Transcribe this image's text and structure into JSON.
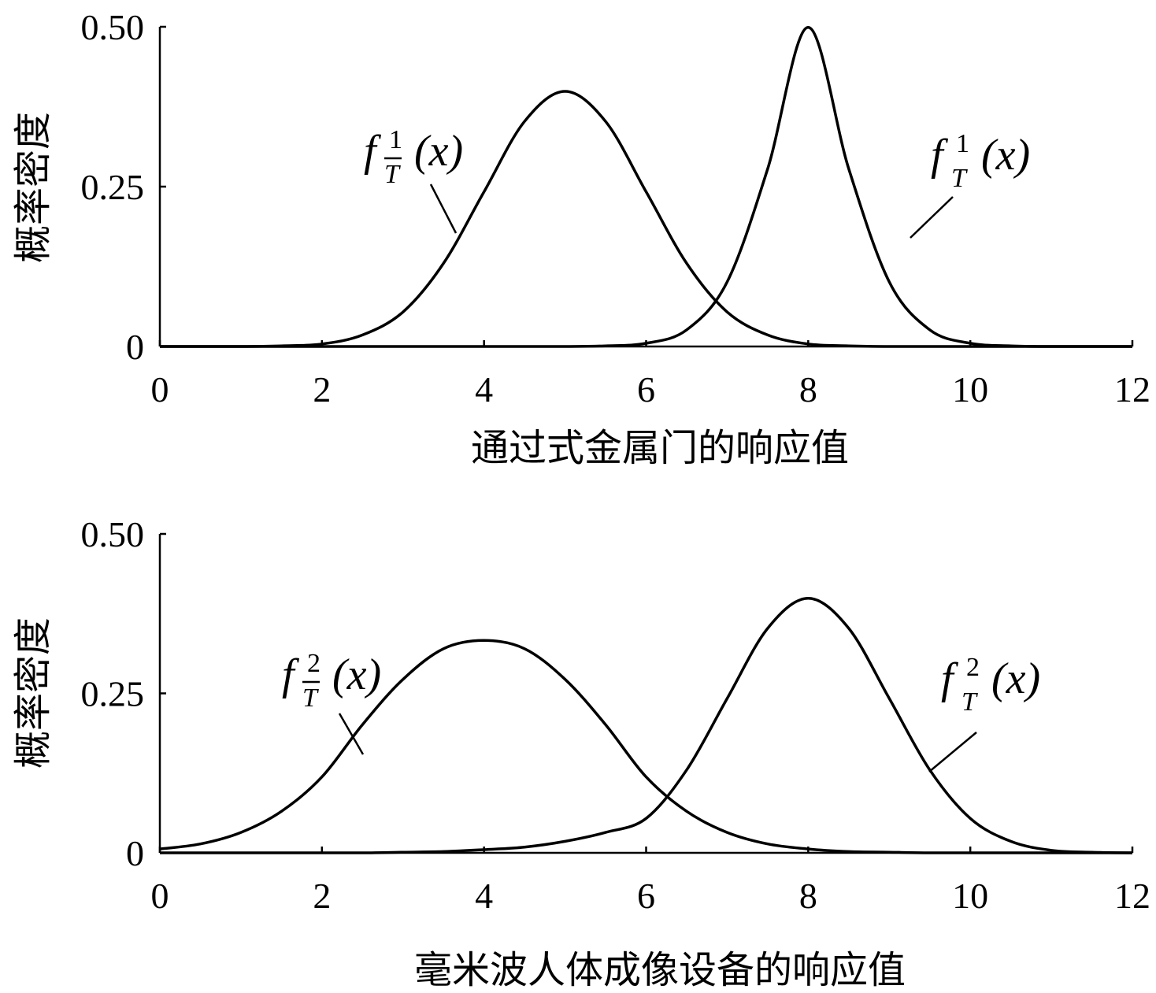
{
  "chart_data": [
    {
      "type": "line",
      "xlabel": "通过式金属门的响应值",
      "ylabel": "概率密度",
      "xlim": [
        0,
        12
      ],
      "ylim": [
        0,
        0.5
      ],
      "x_ticks": [
        "0",
        "2",
        "4",
        "6",
        "8",
        "10",
        "12"
      ],
      "y_ticks": [
        "0",
        "0.25",
        "0.50"
      ],
      "grid": false,
      "series": [
        {
          "name": "f_T̄^1(x)",
          "annotation": {
            "base": "f",
            "sup": "1",
            "sub": "T",
            "overbar": true,
            "arg": "(x)"
          },
          "x": [
            0,
            0.5,
            1,
            1.5,
            2,
            2.5,
            3,
            3.5,
            4,
            4.5,
            5,
            5.5,
            6,
            6.5,
            7,
            7.5,
            8,
            8.5,
            9,
            9.5,
            10,
            10.5,
            11,
            11.5,
            12
          ],
          "y": [
            0.0,
            0.0,
            0.0,
            0.001,
            0.004,
            0.018,
            0.054,
            0.13,
            0.242,
            0.352,
            0.399,
            0.352,
            0.242,
            0.13,
            0.054,
            0.018,
            0.004,
            0.001,
            0.0,
            0.0,
            0.0,
            0.0,
            0.0,
            0.0,
            0.0
          ]
        },
        {
          "name": "f_T^1(x)",
          "annotation": {
            "base": "f",
            "sup": "1",
            "sub": "T",
            "overbar": false,
            "arg": "(x)"
          },
          "x": [
            0,
            0.5,
            1,
            1.5,
            2,
            2.5,
            3,
            3.5,
            4,
            4.5,
            5,
            5.5,
            6,
            6.5,
            7,
            7.5,
            8,
            8.5,
            9,
            9.5,
            10,
            10.5,
            11,
            11.5,
            12
          ],
          "y": [
            0.0,
            0.0,
            0.0,
            0.0,
            0.0,
            0.0,
            0.0,
            0.0,
            0.0,
            0.0,
            0.0,
            0.001,
            0.005,
            0.026,
            0.101,
            0.278,
            0.499,
            0.278,
            0.101,
            0.026,
            0.005,
            0.001,
            0.0,
            0.0,
            0.0
          ]
        }
      ]
    },
    {
      "type": "line",
      "xlabel": "毫米波人体成像设备的响应值",
      "ylabel": "概率密度",
      "xlim": [
        0,
        12
      ],
      "ylim": [
        0,
        0.5
      ],
      "x_ticks": [
        "0",
        "2",
        "4",
        "6",
        "8",
        "10",
        "12"
      ],
      "y_ticks": [
        "0",
        "0.25",
        "0.50"
      ],
      "grid": false,
      "series": [
        {
          "name": "f_T̄^2(x)",
          "annotation": {
            "base": "f",
            "sup": "2",
            "sub": "T",
            "overbar": true,
            "arg": "(x)"
          },
          "x": [
            0,
            0.5,
            1,
            1.5,
            2,
            2.5,
            3,
            3.5,
            4,
            4.5,
            5,
            5.5,
            6,
            6.5,
            7,
            7.5,
            8,
            8.5,
            9,
            9.5,
            10,
            10.5,
            11,
            11.5,
            12
          ],
          "y": [
            0.006,
            0.014,
            0.032,
            0.065,
            0.119,
            0.201,
            0.272,
            0.32,
            0.333,
            0.32,
            0.272,
            0.201,
            0.119,
            0.065,
            0.032,
            0.014,
            0.006,
            0.002,
            0.001,
            0.0,
            0.0,
            0.0,
            0.0,
            0.0,
            0.0
          ]
        },
        {
          "name": "f_T^2(x)",
          "annotation": {
            "base": "f",
            "sup": "2",
            "sub": "T",
            "overbar": false,
            "arg": "(x)"
          },
          "x": [
            0,
            0.5,
            1,
            1.5,
            2,
            2.5,
            3,
            3.5,
            4,
            4.5,
            5,
            5.5,
            6,
            6.5,
            7,
            7.5,
            8,
            8.5,
            9,
            9.5,
            10,
            10.5,
            11,
            11.5,
            12
          ],
          "y": [
            0.0,
            0.0,
            0.0,
            0.0,
            0.0,
            0.0,
            0.001,
            0.002,
            0.005,
            0.009,
            0.018,
            0.032,
            0.054,
            0.13,
            0.242,
            0.352,
            0.399,
            0.352,
            0.242,
            0.13,
            0.054,
            0.018,
            0.004,
            0.001,
            0.0
          ]
        }
      ]
    }
  ]
}
